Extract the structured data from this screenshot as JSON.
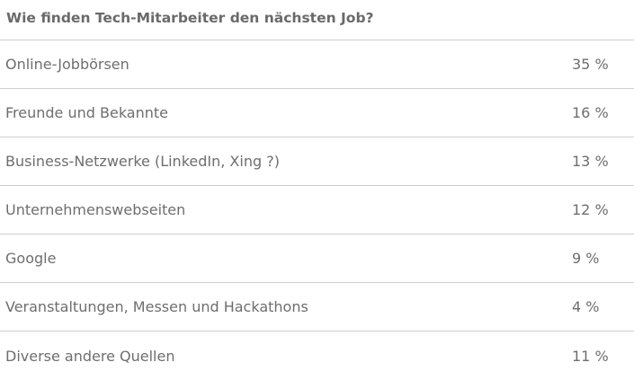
{
  "table": {
    "title": "Wie finden Tech-Mitarbeiter den nächsten Job?",
    "rows": [
      {
        "label": "Online-Jobbörsen",
        "value": "35 %"
      },
      {
        "label": "Freunde und Bekannte",
        "value": "16 %"
      },
      {
        "label": "Business-Netzwerke (LinkedIn, Xing ?)",
        "value": "13 %"
      },
      {
        "label": "Unternehmenswebseiten",
        "value": "12 %"
      },
      {
        "label": "Google",
        "value": "9 %"
      },
      {
        "label": "Veranstaltungen, Messen und Hackathons",
        "value": "4 %"
      },
      {
        "label": "Diverse andere Quellen",
        "value": "11 %"
      }
    ]
  }
}
